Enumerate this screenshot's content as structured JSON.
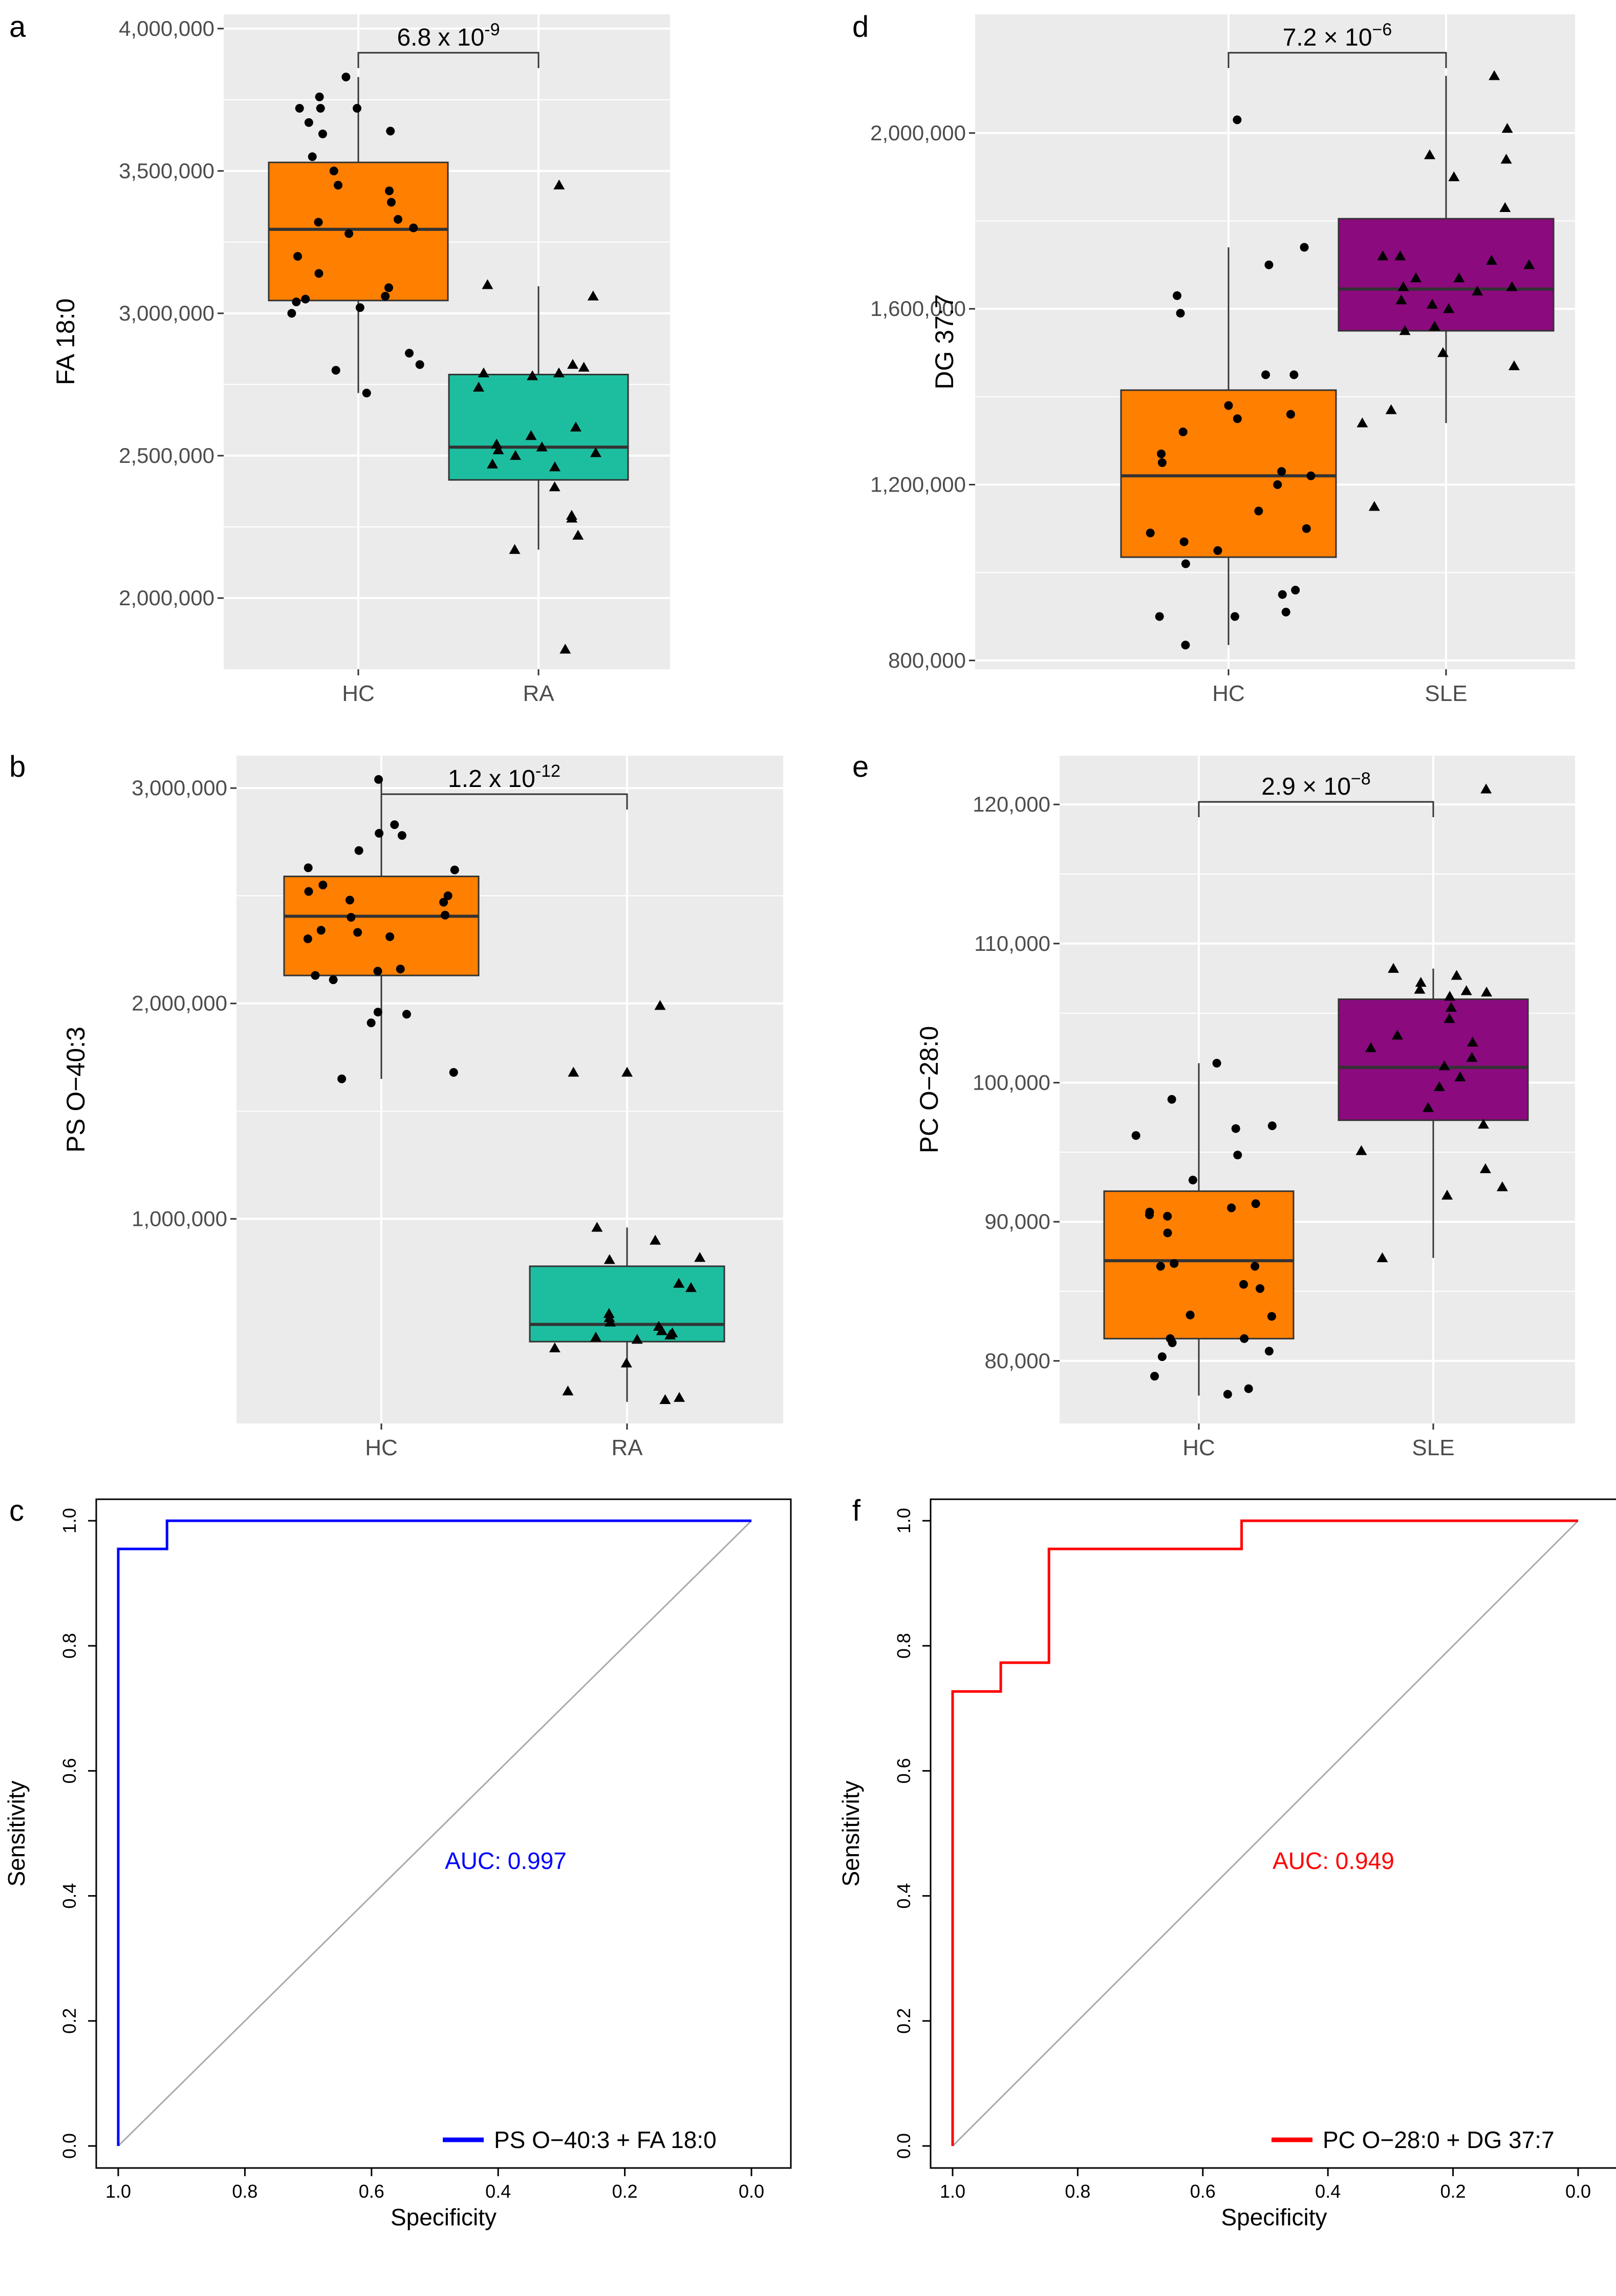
{
  "colors": {
    "panel_bg": "#ebebeb",
    "grid": "#ffffff",
    "hc_box": "#ff7f00",
    "ra_box": "#1dbea0",
    "sle_box": "#8b0a7e",
    "roc_ab": "#0000ff",
    "roc_de": "#ff0000",
    "diag": "#aaaaaa"
  },
  "chart_data": [
    {
      "type": "box",
      "panel": "a",
      "ylabel": "FA 18:0",
      "categories": [
        "HC",
        "RA"
      ],
      "ylim": [
        1750000,
        4050000
      ],
      "yticks": [
        2000000,
        2500000,
        3000000,
        3500000,
        4000000
      ],
      "ytick_labels": [
        "2,000,000",
        "2,500,000",
        "3,000,000",
        "3,500,000",
        "4,000,000"
      ],
      "boxes": [
        {
          "group": "HC",
          "q1": 3045000,
          "median": 3295000,
          "q3": 3530000,
          "whisker_low": 2720000,
          "whisker_high": 3830000
        },
        {
          "group": "RA",
          "q1": 2415000,
          "median": 2530000,
          "q3": 2785000,
          "whisker_low": 2170000,
          "whisker_high": 3095000
        }
      ],
      "points": [
        {
          "group": "HC",
          "values": [
            3830000,
            3760000,
            3720000,
            3720000,
            3720000,
            3670000,
            3630000,
            3640000,
            3550000,
            3500000,
            3450000,
            3430000,
            3390000,
            3330000,
            3320000,
            3300000,
            3280000,
            3200000,
            3140000,
            3090000,
            3060000,
            3050000,
            3040000,
            3020000,
            3000000,
            2860000,
            2820000,
            2800000,
            2720000
          ]
        },
        {
          "group": "RA",
          "values": [
            3450000,
            3100000,
            3060000,
            2820000,
            2810000,
            2790000,
            2790000,
            2780000,
            2740000,
            2600000,
            2570000,
            2540000,
            2530000,
            2520000,
            2510000,
            2500000,
            2470000,
            2460000,
            2390000,
            2290000,
            2280000,
            2220000,
            2170000,
            1820000
          ]
        }
      ],
      "pvalue_base": "6.8 x 10",
      "pvalue_exp": "-9"
    },
    {
      "type": "box",
      "panel": "b",
      "ylabel": "PS O−40:3",
      "categories": [
        "HC",
        "RA"
      ],
      "ylim": [
        50000,
        3150000
      ],
      "yticks": [
        1000000,
        2000000,
        3000000
      ],
      "ytick_labels": [
        "1,000,000",
        "2,000,000",
        "3,000,000"
      ],
      "boxes": [
        {
          "group": "HC",
          "q1": 2130000,
          "median": 2405000,
          "q3": 2590000,
          "whisker_low": 1650000,
          "whisker_high": 3040000
        },
        {
          "group": "RA",
          "q1": 430000,
          "median": 510000,
          "q3": 780000,
          "whisker_low": 150000,
          "whisker_high": 960000
        }
      ],
      "points": [
        {
          "group": "HC",
          "values": [
            3040000,
            2830000,
            2790000,
            2780000,
            2710000,
            2630000,
            2620000,
            2550000,
            2520000,
            2500000,
            2480000,
            2470000,
            2410000,
            2400000,
            2340000,
            2330000,
            2310000,
            2300000,
            2160000,
            2150000,
            2130000,
            2110000,
            1960000,
            1950000,
            1910000,
            1680000,
            1650000
          ]
        },
        {
          "group": "RA",
          "values": [
            1990000,
            1680000,
            1680000,
            960000,
            900000,
            820000,
            810000,
            700000,
            680000,
            560000,
            540000,
            520000,
            500000,
            480000,
            470000,
            460000,
            450000,
            440000,
            400000,
            330000,
            200000,
            170000,
            160000
          ]
        }
      ],
      "pvalue_base": "1.2 x 10",
      "pvalue_exp": "-12"
    },
    {
      "type": "line",
      "panel": "c",
      "xlabel": "Specificity",
      "ylabel": "Sensitivity",
      "xlim": [
        1.0,
        0.0
      ],
      "ylim": [
        0.0,
        1.0
      ],
      "ticks": [
        "0.0",
        "0.2",
        "0.4",
        "0.6",
        "0.8",
        "1.0"
      ],
      "x": [
        1.0,
        1.0,
        0.923,
        0.923,
        0.0
      ],
      "y": [
        0.0,
        0.955,
        0.955,
        1.0,
        1.0
      ],
      "annotation": "AUC: 0.997",
      "legend": "PS O−40:3 + FA 18:0",
      "legend_position": "bottom-right"
    },
    {
      "type": "box",
      "panel": "d",
      "ylabel": "DG 37:7",
      "categories": [
        "HC",
        "SLE"
      ],
      "ylim": [
        780000,
        2270000
      ],
      "yticks": [
        800000,
        1200000,
        1600000,
        2000000
      ],
      "ytick_labels": [
        "800,000",
        "1,200,000",
        "1,600,000",
        "2,000,000"
      ],
      "boxes": [
        {
          "group": "HC",
          "q1": 1035000,
          "median": 1220000,
          "q3": 1415000,
          "whisker_low": 835000,
          "whisker_high": 1740000
        },
        {
          "group": "SLE",
          "q1": 1550000,
          "median": 1645000,
          "q3": 1805000,
          "whisker_low": 1340000,
          "whisker_high": 2130000
        }
      ],
      "points": [
        {
          "group": "HC",
          "values": [
            2030000,
            1740000,
            1700000,
            1630000,
            1590000,
            1450000,
            1450000,
            1380000,
            1360000,
            1350000,
            1320000,
            1270000,
            1250000,
            1230000,
            1220000,
            1200000,
            1140000,
            1100000,
            1090000,
            1070000,
            1050000,
            1020000,
            960000,
            950000,
            910000,
            900000,
            900000,
            835000
          ]
        },
        {
          "group": "SLE",
          "values": [
            2130000,
            2010000,
            1950000,
            1940000,
            1900000,
            1830000,
            1720000,
            1720000,
            1710000,
            1700000,
            1670000,
            1670000,
            1650000,
            1650000,
            1640000,
            1620000,
            1610000,
            1600000,
            1560000,
            1550000,
            1500000,
            1470000,
            1370000,
            1340000,
            1150000
          ]
        }
      ],
      "pvalue_base": "7.2 × 10",
      "pvalue_exp": "−6"
    },
    {
      "type": "box",
      "panel": "e",
      "ylabel": "PC O−28:0",
      "categories": [
        "HC",
        "SLE"
      ],
      "ylim": [
        75500,
        123500
      ],
      "yticks": [
        80000,
        90000,
        100000,
        110000,
        120000
      ],
      "ytick_labels": [
        "80,000",
        "90,000",
        "100,000",
        "110,000",
        "120,000"
      ],
      "boxes": [
        {
          "group": "HC",
          "q1": 81600,
          "median": 87200,
          "q3": 92200,
          "whisker_low": 77500,
          "whisker_high": 101400
        },
        {
          "group": "SLE",
          "q1": 97300,
          "median": 101100,
          "q3": 106000,
          "whisker_low": 87400,
          "whisker_high": 108200
        }
      ],
      "points": [
        {
          "group": "HC",
          "values": [
            101400,
            98800,
            96900,
            96700,
            96200,
            94800,
            93000,
            91300,
            91000,
            90700,
            90500,
            90400,
            89200,
            87000,
            86800,
            86800,
            85500,
            85200,
            83300,
            83200,
            81600,
            81600,
            81300,
            80700,
            80300,
            78900,
            78000,
            77600
          ]
        },
        {
          "group": "SLE",
          "values": [
            121100,
            108200,
            107700,
            107200,
            106700,
            106600,
            106500,
            106200,
            105400,
            104600,
            103400,
            102900,
            102500,
            101800,
            101200,
            100400,
            99700,
            98200,
            97000,
            95100,
            93800,
            92500,
            91900,
            87400
          ]
        }
      ],
      "pvalue_base": "2.9 × 10",
      "pvalue_exp": "−8"
    },
    {
      "type": "line",
      "panel": "f",
      "xlabel": "Specificity",
      "ylabel": "Sensitivity",
      "xlim": [
        1.0,
        0.0
      ],
      "ylim": [
        0.0,
        1.0
      ],
      "ticks": [
        "0.0",
        "0.2",
        "0.4",
        "0.6",
        "0.8",
        "1.0"
      ],
      "x": [
        1.0,
        1.0,
        0.923,
        0.923,
        0.846,
        0.846,
        0.538,
        0.538,
        0.0
      ],
      "y": [
        0.0,
        0.727,
        0.727,
        0.773,
        0.773,
        0.955,
        0.955,
        1.0,
        1.0
      ],
      "annotation": "AUC: 0.949",
      "legend": "PC O−28:0 + DG 37:7",
      "legend_position": "bottom-right"
    }
  ]
}
